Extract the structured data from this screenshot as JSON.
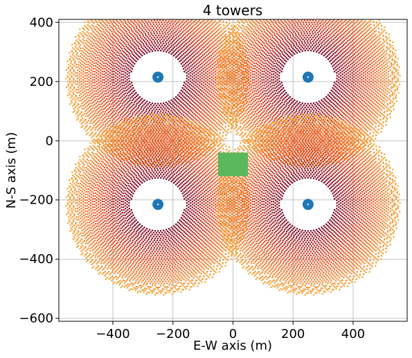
{
  "chart_data": {
    "type": "scatter",
    "title": "4 towers",
    "xlabel": "E-W axis (m)",
    "ylabel": "N-S axis (m)",
    "xlim": [
      -580,
      580
    ],
    "ylim": [
      -610,
      410
    ],
    "xticks": [
      -400,
      -200,
      0,
      200,
      400
    ],
    "xtick_labels": [
      "−400",
      "−200",
      "0",
      "200",
      "400"
    ],
    "yticks": [
      400,
      200,
      0,
      -200,
      -400,
      -600
    ],
    "ytick_labels": [
      "400",
      "200",
      "0",
      "−200",
      "−400",
      "−600"
    ],
    "grid": true,
    "heliostat_field": {
      "color_scale": "orange-to-dark-red",
      "inner_color": "#7a0021",
      "outer_color": "#f7a83a",
      "fields": [
        {
          "center": [
            -250,
            215
          ],
          "inner_radius": 90,
          "outer_radius": 300
        },
        {
          "center": [
            250,
            215
          ],
          "inner_radius": 90,
          "outer_radius": 300
        },
        {
          "center": [
            -250,
            -215
          ],
          "inner_radius": 90,
          "outer_radius": 300
        },
        {
          "center": [
            250,
            -215
          ],
          "inner_radius": 90,
          "outer_radius": 300
        }
      ]
    },
    "towers": {
      "color": "#1f77b4",
      "points": [
        [
          -250,
          215
        ],
        [
          250,
          215
        ],
        [
          -250,
          -215
        ],
        [
          250,
          -215
        ]
      ]
    },
    "receiver_block": {
      "color": "#5cb85c",
      "x_range": [
        -50,
        50
      ],
      "y_range": [
        -120,
        -40
      ]
    }
  }
}
